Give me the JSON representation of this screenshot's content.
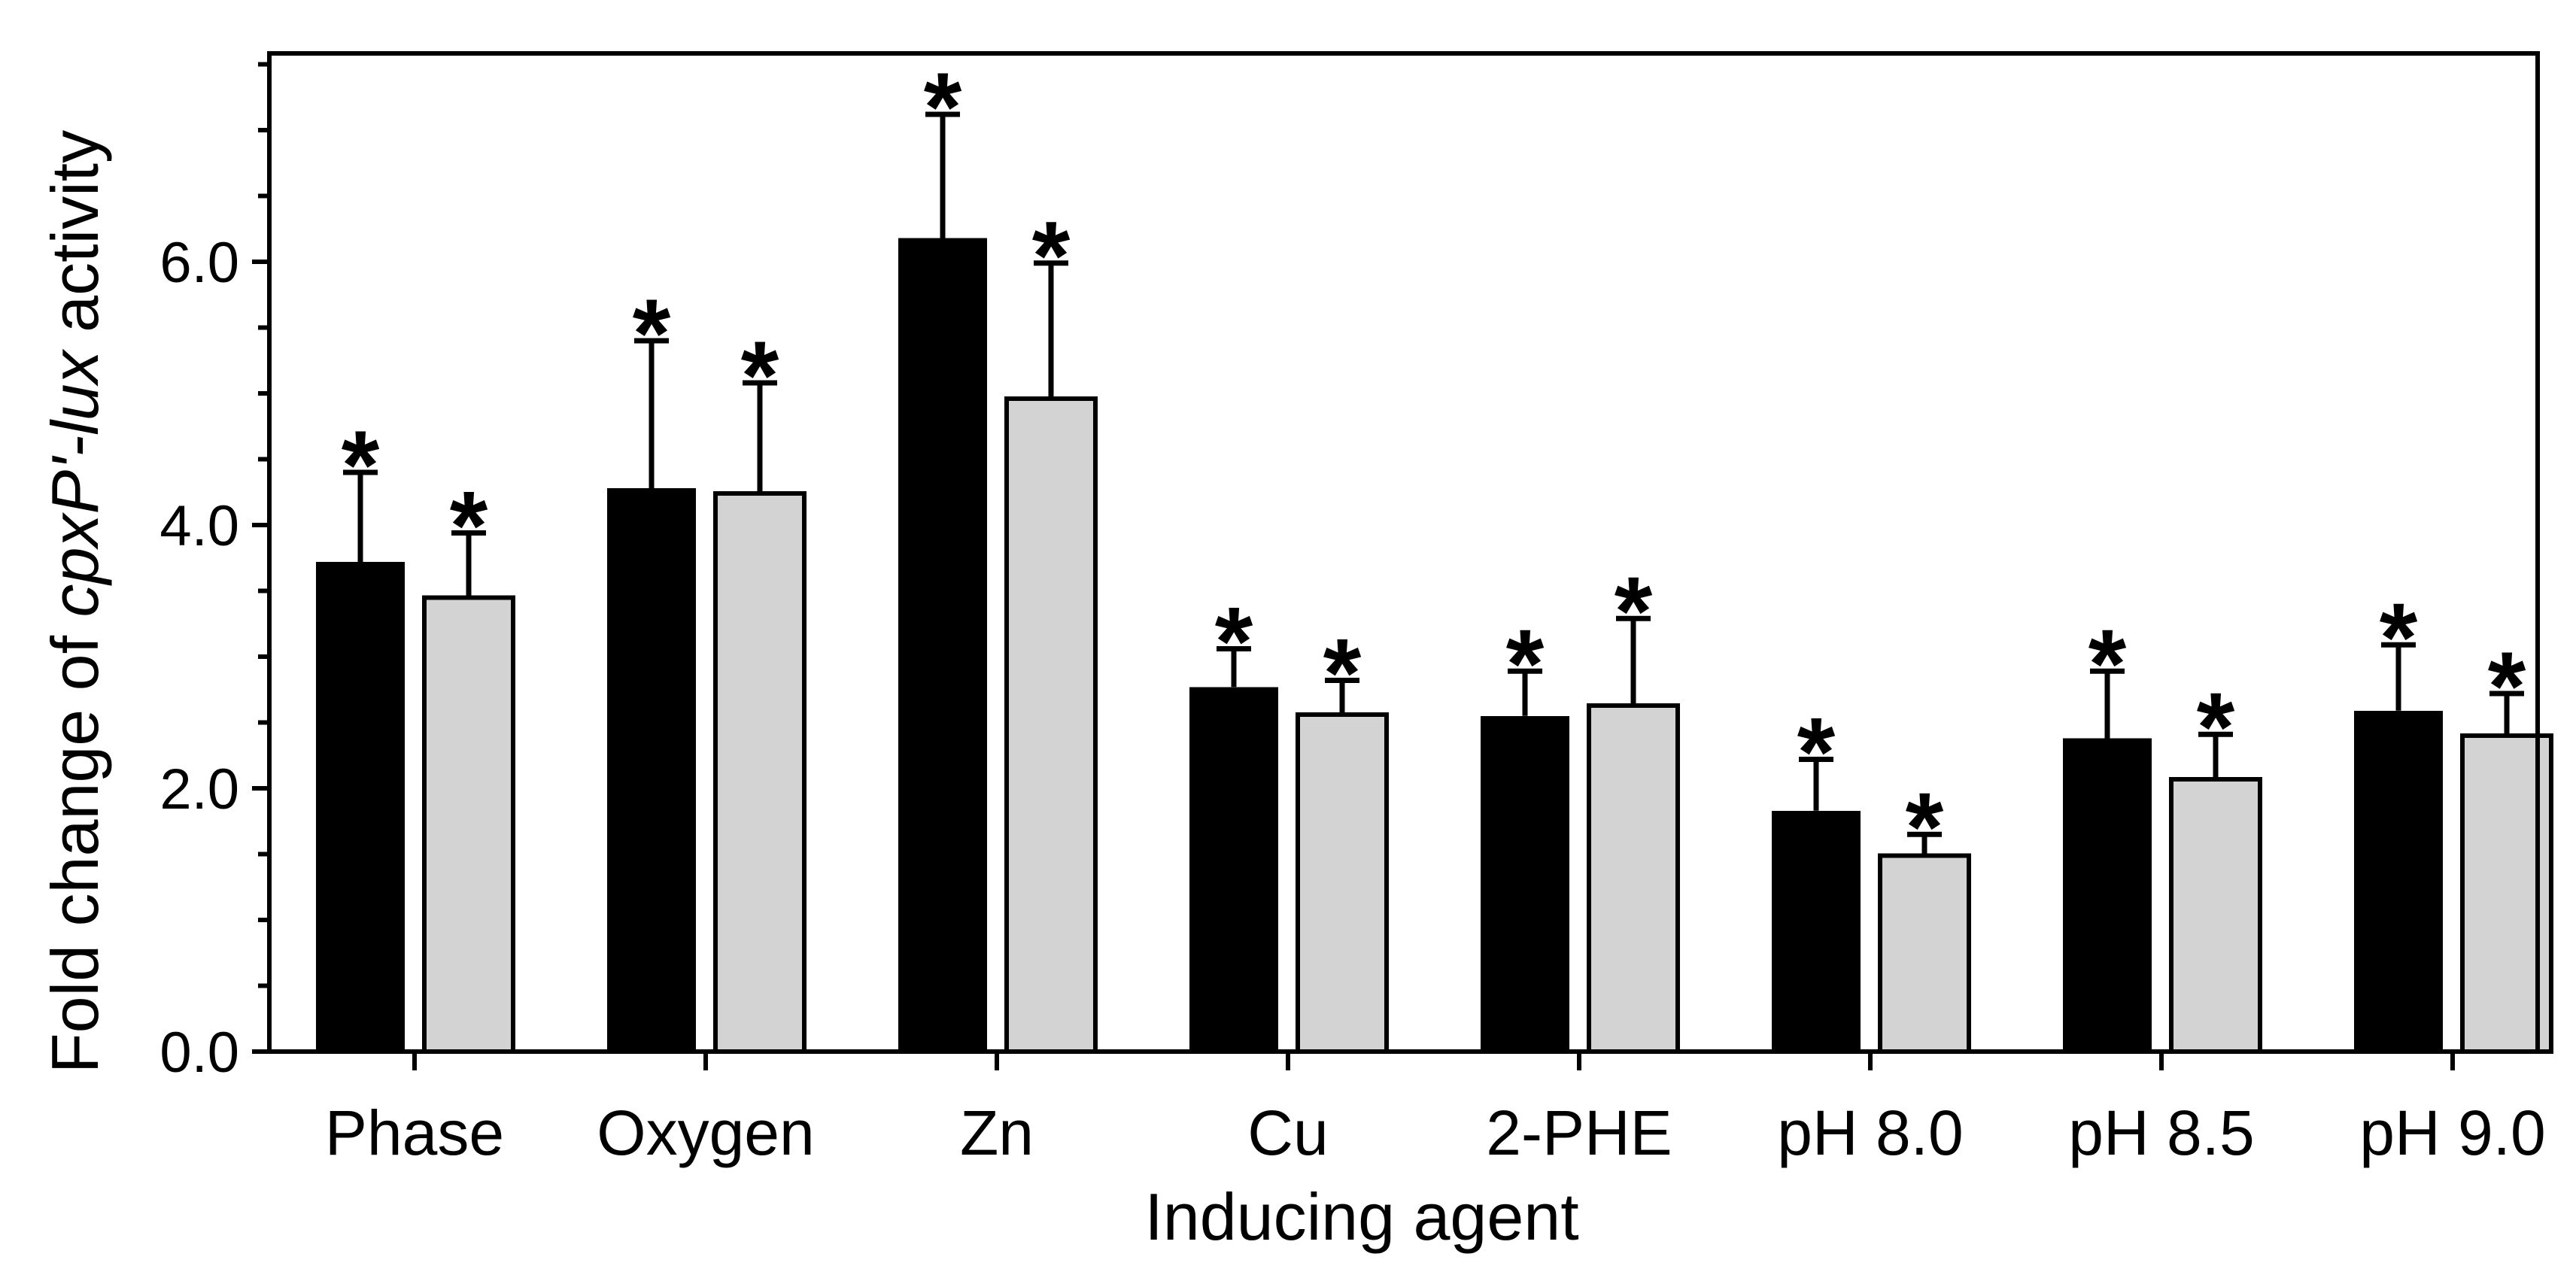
{
  "figure": {
    "background": "#ffffff"
  },
  "chart_data": {
    "type": "bar",
    "xlabel": "Inducing agent",
    "ylabel": "Fold change of cpxP'-lux activity",
    "ylabel_parts": {
      "prefix": "Fold change of ",
      "italic": "cpxP'-lux",
      "suffix": " activity"
    },
    "categories": [
      "Phase",
      "Oxygen",
      "Zn",
      "Cu",
      "2-PHE",
      "pH 8.0",
      "pH 8.5",
      "pH 9.0"
    ],
    "series": [
      {
        "name": "black",
        "color": "#000000",
        "values": [
          3.72,
          4.28,
          6.18,
          2.77,
          2.55,
          1.83,
          2.38,
          2.59
        ],
        "errors": [
          0.68,
          1.12,
          0.94,
          0.29,
          0.34,
          0.39,
          0.51,
          0.5
        ],
        "significant": [
          true,
          true,
          true,
          true,
          true,
          true,
          true,
          true
        ]
      },
      {
        "name": "light-gray",
        "color": "#d3d3d3",
        "values": [
          3.45,
          4.24,
          4.96,
          2.56,
          2.63,
          1.49,
          2.07,
          2.4
        ],
        "errors": [
          0.49,
          0.84,
          1.03,
          0.26,
          0.66,
          0.16,
          0.34,
          0.32
        ],
        "significant": [
          true,
          true,
          true,
          true,
          true,
          true,
          true,
          true
        ]
      }
    ],
    "y_axis": {
      "min": 0.0,
      "max": 7.58,
      "major_tick_step": 2.0,
      "minor_tick_step": 0.5,
      "major_tick_values": [
        0,
        2,
        4,
        6
      ],
      "major_tick_labels": [
        "0.0",
        "2.0",
        "4.0",
        "6.0"
      ]
    },
    "error_bars": "upper-only",
    "significance_marker": "*",
    "grid": false,
    "legend": null,
    "frame": true,
    "colors": {
      "bar_black": "#000000",
      "bar_gray": "#d3d3d3",
      "axis": "#000000"
    }
  }
}
